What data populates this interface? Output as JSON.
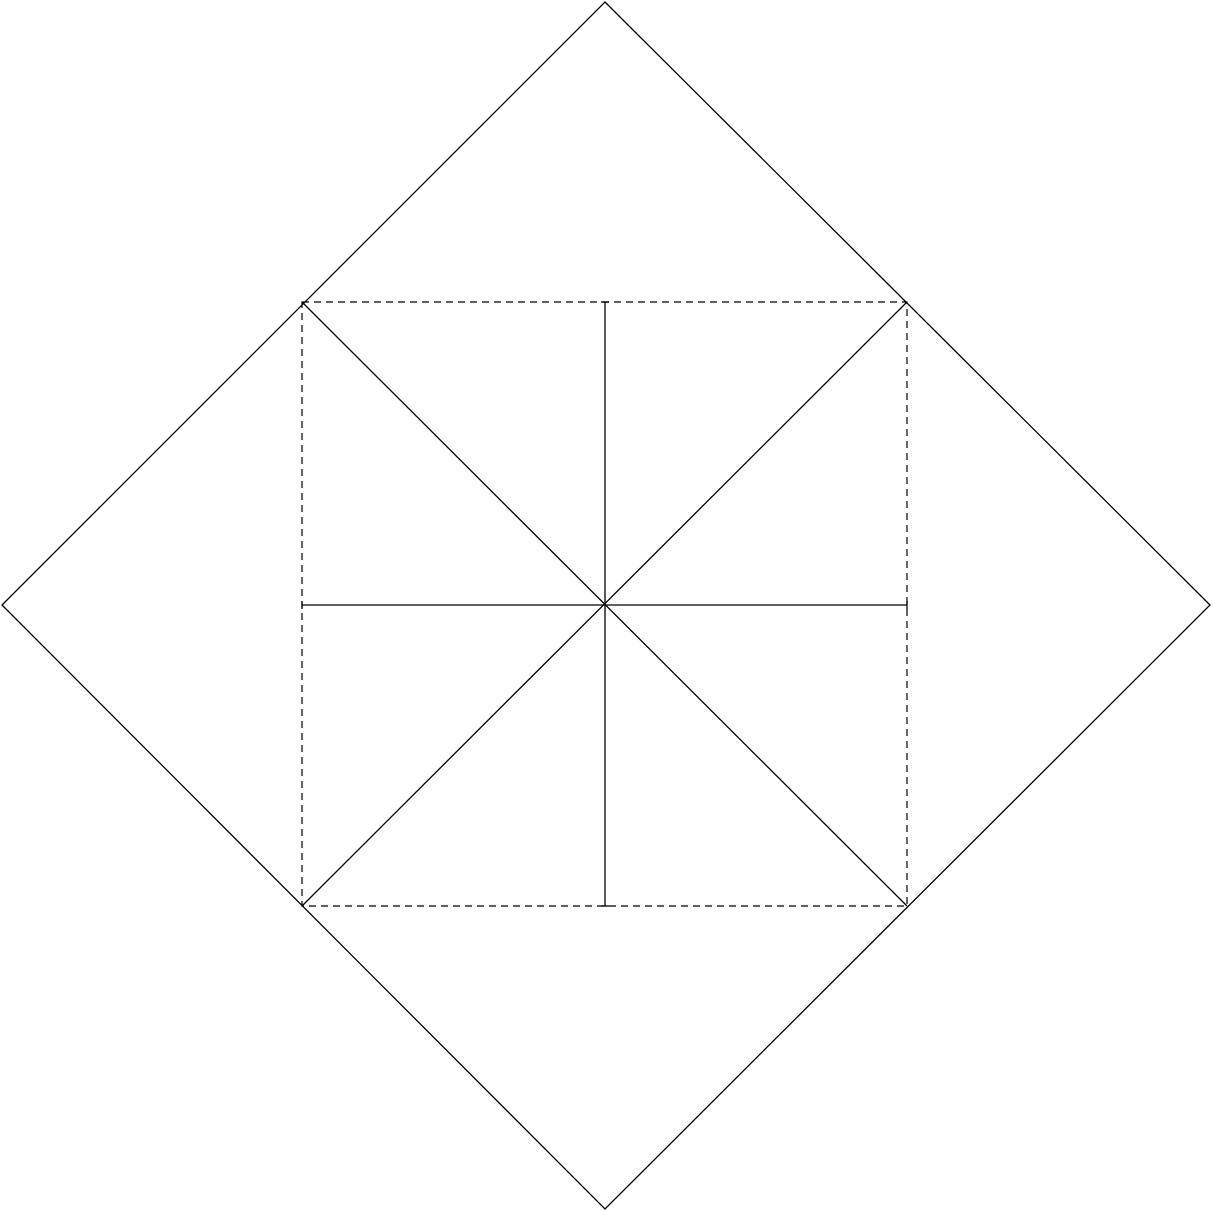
{
  "diagram": {
    "type": "fold-pattern",
    "text": [],
    "colors": {
      "background": "#ffffff",
      "line": "#000000"
    },
    "line_styles": {
      "outline": "solid",
      "inner-square": "dashed",
      "diagonals": "solid",
      "center-cross": "solid"
    }
  }
}
